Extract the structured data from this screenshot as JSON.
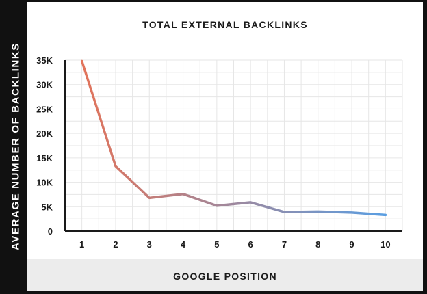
{
  "chart_data": {
    "type": "line",
    "title": "TOTAL EXTERNAL BACKLINKS",
    "xlabel": "GOOGLE POSITION",
    "ylabel": "AVERAGE NUMBER OF BACKLINKS",
    "x": [
      1,
      2,
      3,
      4,
      5,
      6,
      7,
      8,
      9,
      10
    ],
    "y_tick_labels": [
      "0",
      "5K",
      "10K",
      "15K",
      "20K",
      "25K",
      "30K",
      "35K"
    ],
    "x_tick_labels": [
      "1",
      "2",
      "3",
      "4",
      "5",
      "6",
      "7",
      "8",
      "9",
      "10"
    ],
    "ylim": [
      0,
      35000
    ],
    "grid": true,
    "series": [
      {
        "values": [
          34800,
          13300,
          6800,
          7600,
          5200,
          5900,
          3900,
          4000,
          3800,
          3300
        ],
        "gradient_start_color": "#e2735a",
        "gradient_end_color": "#5a9ee2"
      }
    ]
  },
  "colors": {
    "background": "#111111",
    "card": "#ffffff",
    "grid": "#e6e6e6",
    "axis_band": "#ececec",
    "text": "#1a1a1a"
  }
}
